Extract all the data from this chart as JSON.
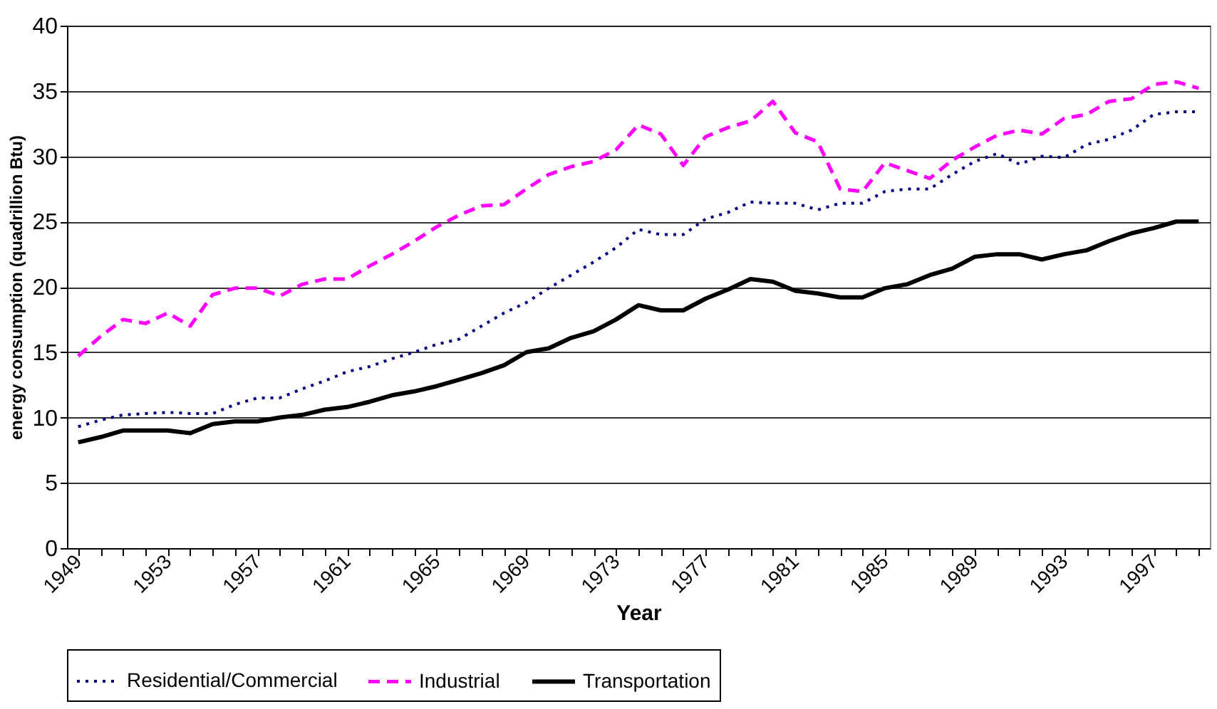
{
  "chart_data": {
    "type": "line",
    "xlabel": "Year",
    "ylabel": "energy consumption (quadrillion Btu)",
    "categories": [
      "1949",
      null,
      null,
      null,
      "1953",
      null,
      null,
      null,
      "1957",
      null,
      null,
      null,
      "1961",
      null,
      null,
      null,
      "1965",
      null,
      null,
      null,
      "1969",
      null,
      null,
      null,
      "1973",
      null,
      null,
      null,
      "1977",
      null,
      null,
      null,
      "1981",
      null,
      null,
      null,
      "1985",
      null,
      null,
      null,
      "1989",
      null,
      null,
      null,
      "1993",
      null,
      null,
      null,
      "1997",
      null,
      null
    ],
    "series": [
      {
        "name": "Residential/Commercial",
        "color": "#000080",
        "line_style": "dotted",
        "values": [
          9.3,
          9.8,
          10.2,
          10.3,
          10.4,
          10.3,
          10.3,
          11.0,
          11.5,
          11.5,
          12.2,
          12.8,
          13.5,
          13.9,
          14.5,
          15.0,
          15.6,
          16.0,
          17.0,
          18.0,
          18.8,
          19.9,
          20.9,
          21.9,
          23.0,
          24.4,
          24.0,
          24.0,
          25.2,
          25.7,
          26.5,
          26.4,
          26.4,
          25.9,
          26.4,
          26.4,
          27.3,
          27.5,
          27.5,
          28.6,
          29.6,
          30.2,
          29.4,
          30.0,
          29.9,
          30.9,
          31.3,
          32.0,
          33.2,
          33.4,
          33.4
        ]
      },
      {
        "name": "Industrial",
        "color": "#ff00ff",
        "line_style": "dashed",
        "values": [
          14.7,
          16.2,
          17.5,
          17.2,
          18.0,
          17.0,
          19.4,
          19.9,
          19.9,
          19.3,
          20.2,
          20.6,
          20.6,
          21.6,
          22.5,
          23.5,
          24.6,
          25.5,
          26.2,
          26.3,
          27.5,
          28.6,
          29.2,
          29.6,
          30.5,
          32.4,
          31.7,
          29.3,
          31.5,
          32.2,
          32.7,
          34.2,
          31.8,
          31.1,
          27.5,
          27.3,
          29.5,
          28.9,
          28.3,
          29.7,
          30.7,
          31.6,
          32.0,
          31.7,
          32.9,
          33.2,
          34.2,
          34.4,
          35.5,
          35.7,
          35.2
        ]
      },
      {
        "name": "Transportation",
        "color": "#000000",
        "line_style": "solid",
        "values": [
          8.1,
          8.5,
          9.0,
          9.0,
          9.0,
          8.8,
          9.5,
          9.7,
          9.7,
          10.0,
          10.2,
          10.6,
          10.8,
          11.2,
          11.7,
          12.0,
          12.4,
          12.9,
          13.4,
          14.0,
          15.0,
          15.3,
          16.1,
          16.6,
          17.5,
          18.6,
          18.2,
          18.2,
          19.1,
          19.8,
          20.6,
          20.4,
          19.7,
          19.5,
          19.2,
          19.2,
          19.9,
          20.2,
          20.9,
          21.4,
          22.3,
          22.5,
          22.5,
          22.1,
          22.5,
          22.8,
          23.5,
          24.1,
          24.5,
          25.0,
          25.0
        ]
      }
    ],
    "ylim": [
      0,
      40
    ],
    "yticks": [
      0,
      5,
      10,
      15,
      20,
      25,
      30,
      35,
      40
    ],
    "grid": "y",
    "legend": "bottom",
    "marker": "none"
  }
}
